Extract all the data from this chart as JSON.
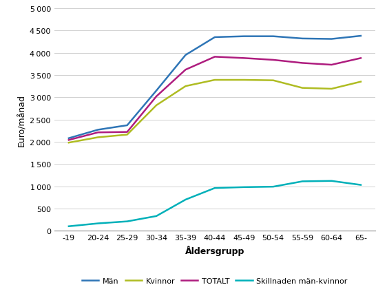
{
  "categories": [
    "-19",
    "20-24",
    "25-29",
    "30-34",
    "35-39",
    "40-44",
    "45-49",
    "50-54",
    "55-59",
    "60-64",
    "65-"
  ],
  "man": [
    2080,
    2270,
    2370,
    3150,
    3950,
    4350,
    4370,
    4370,
    4320,
    4310,
    4380
  ],
  "kvinnor": [
    1980,
    2100,
    2160,
    2820,
    3250,
    3390,
    3390,
    3380,
    3210,
    3190,
    3350
  ],
  "totalt": [
    2040,
    2210,
    2220,
    3020,
    3620,
    3910,
    3880,
    3840,
    3770,
    3730,
    3880
  ],
  "skillnad": [
    100,
    165,
    210,
    330,
    700,
    960,
    980,
    990,
    1110,
    1120,
    1030
  ],
  "man_color": "#2E75B6",
  "kvinnor_color": "#AFBC22",
  "totalt_color": "#AE1C7E",
  "skillnad_color": "#00B0B9",
  "ylabel": "Euro/månad",
  "xlabel": "Åldersgrupp",
  "ylim": [
    0,
    5000
  ],
  "yticks": [
    0,
    500,
    1000,
    1500,
    2000,
    2500,
    3000,
    3500,
    4000,
    4500,
    5000
  ],
  "legend_man": "Män",
  "legend_kvinnor": "Kvinnor",
  "legend_totalt": "TOTALT",
  "legend_skillnad": "Skillnaden män-kvinnor"
}
